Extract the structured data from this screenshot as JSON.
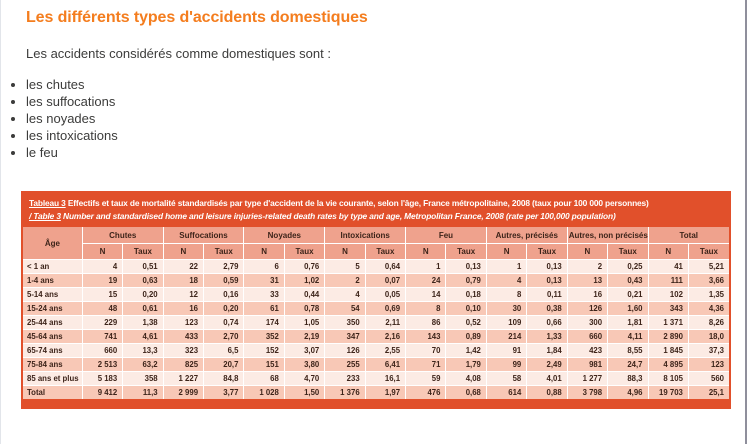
{
  "page": {
    "title": "Les différents types d'accidents domestiques",
    "intro": "Les accidents considérés comme domestiques sont :",
    "bullets": [
      "les chutes",
      "les suffocations",
      "les noyades",
      "les intoxications",
      "le feu"
    ]
  },
  "table": {
    "caption_fr_label": "Tableau 3",
    "caption_fr": "Effectifs et taux de mortalité standardisés par type d'accident de la vie courante, selon l'âge, France métropolitaine, 2008 (taux pour 100 000 personnes)",
    "caption_en_label": "/ Table 3",
    "caption_en": "Number and standardised home and leisure injuries-related death rates by type and age, Metropolitan France, 2008 (rate per 100,000 population)",
    "age_header": "Âge",
    "col_groups": [
      "Chutes",
      "Suffocations",
      "Noyades",
      "Intoxications",
      "Feu",
      "Autres, précisés",
      "Autres, non précisés",
      "Total"
    ],
    "sub_headers": [
      "N",
      "Taux"
    ],
    "rows": [
      {
        "age": "< 1 an",
        "values": [
          "4",
          "0,51",
          "22",
          "2,79",
          "6",
          "0,76",
          "5",
          "0,64",
          "1",
          "0,13",
          "1",
          "0,13",
          "2",
          "0,25",
          "41",
          "5,21"
        ]
      },
      {
        "age": "1-4 ans",
        "values": [
          "19",
          "0,63",
          "18",
          "0,59",
          "31",
          "1,02",
          "2",
          "0,07",
          "24",
          "0,79",
          "4",
          "0,13",
          "13",
          "0,43",
          "111",
          "3,66"
        ]
      },
      {
        "age": "5-14 ans",
        "values": [
          "15",
          "0,20",
          "12",
          "0,16",
          "33",
          "0,44",
          "4",
          "0,05",
          "14",
          "0,18",
          "8",
          "0,11",
          "16",
          "0,21",
          "102",
          "1,35"
        ]
      },
      {
        "age": "15-24 ans",
        "values": [
          "48",
          "0,61",
          "16",
          "0,20",
          "61",
          "0,78",
          "54",
          "0,69",
          "8",
          "0,10",
          "30",
          "0,38",
          "126",
          "1,60",
          "343",
          "4,36"
        ]
      },
      {
        "age": "25-44 ans",
        "values": [
          "229",
          "1,38",
          "123",
          "0,74",
          "174",
          "1,05",
          "350",
          "2,11",
          "86",
          "0,52",
          "109",
          "0,66",
          "300",
          "1,81",
          "1 371",
          "8,26"
        ]
      },
      {
        "age": "45-64 ans",
        "values": [
          "741",
          "4,61",
          "433",
          "2,70",
          "352",
          "2,19",
          "347",
          "2,16",
          "143",
          "0,89",
          "214",
          "1,33",
          "660",
          "4,11",
          "2 890",
          "18,0"
        ]
      },
      {
        "age": "65-74 ans",
        "values": [
          "660",
          "13,3",
          "323",
          "6,5",
          "152",
          "3,07",
          "126",
          "2,55",
          "70",
          "1,42",
          "91",
          "1,84",
          "423",
          "8,55",
          "1 845",
          "37,3"
        ]
      },
      {
        "age": "75-84 ans",
        "values": [
          "2 513",
          "63,2",
          "825",
          "20,7",
          "151",
          "3,80",
          "255",
          "6,41",
          "71",
          "1,79",
          "99",
          "2,49",
          "981",
          "24,7",
          "4 895",
          "123"
        ]
      },
      {
        "age": "85 ans et plus",
        "values": [
          "5 183",
          "358",
          "1 227",
          "84,8",
          "68",
          "4,70",
          "233",
          "16,1",
          "59",
          "4,08",
          "58",
          "4,01",
          "1 277",
          "88,3",
          "8 105",
          "560"
        ]
      },
      {
        "age": "Total",
        "values": [
          "9 412",
          "11,3",
          "2 999",
          "3,77",
          "1 028",
          "1,50",
          "1 376",
          "1,97",
          "476",
          "0,68",
          "614",
          "0,88",
          "3 798",
          "4,96",
          "19 703",
          "25,1"
        ]
      }
    ]
  },
  "colors": {
    "accent_red": "#e1502b",
    "header_salmon": "#efa28d",
    "row_light": "#fcebe4",
    "row_dark": "#f8c8b6",
    "title_orange": "#f47d1e",
    "text_dark": "#3d241a"
  }
}
